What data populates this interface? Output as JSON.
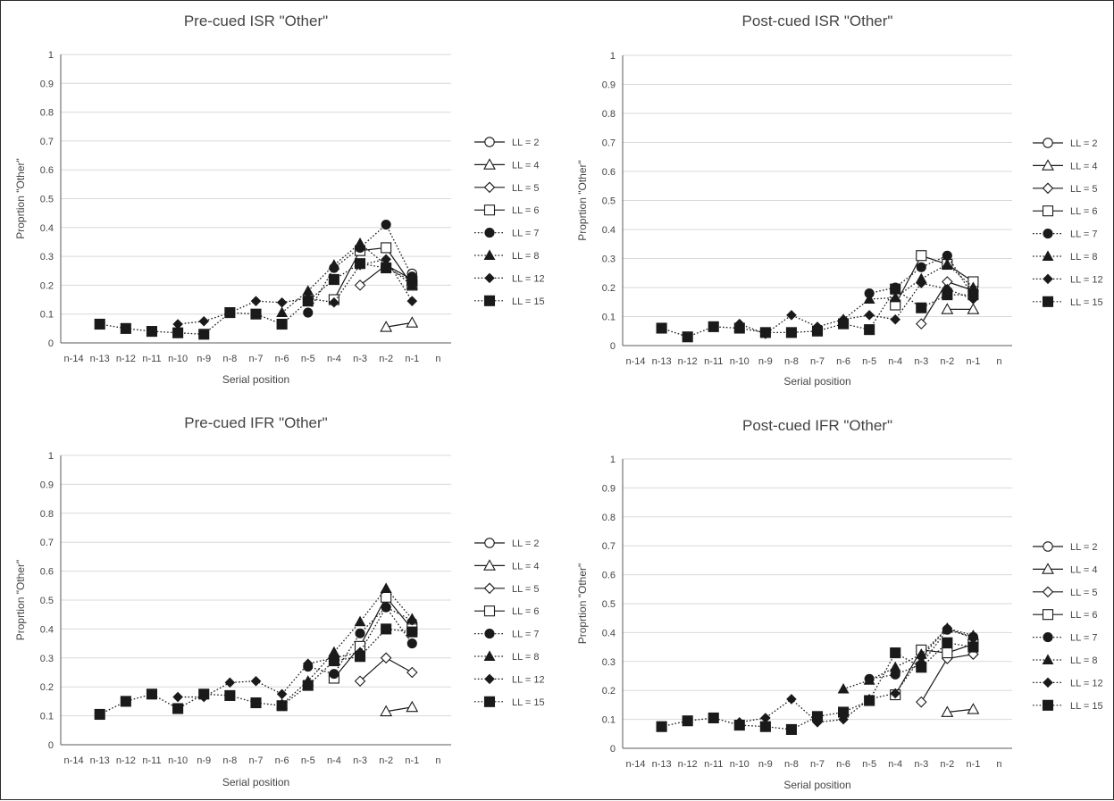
{
  "chart_data": [
    {
      "type": "line",
      "title": "Pre-cued ISR \"Other\"",
      "xlabel": "Serial position",
      "ylabel": "Proprtion \"Other\"",
      "categories": [
        "n-14",
        "n-13",
        "n-12",
        "n-11",
        "n-10",
        "n-9",
        "n-8",
        "n-7",
        "n-6",
        "n-5",
        "n-4",
        "n-3",
        "n-2",
        "n-1",
        "n"
      ],
      "ylim": [
        0,
        1
      ],
      "yticks": [
        "0",
        "0.1",
        "0.2",
        "0.3",
        "0.4",
        "0.5",
        "0.6",
        "0.7",
        "0.8",
        "0.9",
        "1"
      ],
      "grid": true,
      "legend": "right",
      "series": [
        {
          "name": "LL = 2",
          "marker": "circle-open",
          "line": "solid",
          "values": [
            null,
            null,
            null,
            null,
            null,
            null,
            null,
            null,
            null,
            null,
            null,
            null,
            null,
            0.24,
            null
          ]
        },
        {
          "name": "LL = 4",
          "marker": "triangle-open",
          "line": "solid",
          "values": [
            null,
            null,
            null,
            null,
            null,
            null,
            null,
            null,
            null,
            null,
            null,
            null,
            0.055,
            0.07,
            null
          ]
        },
        {
          "name": "LL = 5",
          "marker": "diamond-open",
          "line": "solid",
          "values": [
            null,
            null,
            null,
            null,
            null,
            null,
            null,
            null,
            null,
            null,
            null,
            0.2,
            0.27,
            0.22,
            null
          ]
        },
        {
          "name": "LL = 6",
          "marker": "square-open",
          "line": "solid",
          "values": [
            null,
            null,
            null,
            null,
            null,
            null,
            null,
            null,
            null,
            null,
            0.15,
            0.32,
            0.33,
            0.2,
            null
          ]
        },
        {
          "name": "LL = 7",
          "marker": "circle",
          "line": "dotted",
          "values": [
            null,
            null,
            null,
            null,
            null,
            null,
            null,
            null,
            null,
            0.105,
            0.26,
            0.33,
            0.41,
            0.23,
            null
          ]
        },
        {
          "name": "LL = 8",
          "marker": "triangle",
          "line": "dotted",
          "values": [
            null,
            null,
            null,
            null,
            null,
            null,
            null,
            null,
            0.105,
            0.18,
            0.27,
            0.345,
            0.27,
            0.2,
            null
          ]
        },
        {
          "name": "LL = 12",
          "marker": "diamond",
          "line": "dotted",
          "values": [
            null,
            null,
            null,
            null,
            0.065,
            0.075,
            0.105,
            0.145,
            0.14,
            0.155,
            0.14,
            0.27,
            0.29,
            0.145,
            null
          ]
        },
        {
          "name": "LL = 15",
          "marker": "square",
          "line": "dotted",
          "values": [
            null,
            0.065,
            0.05,
            0.04,
            0.035,
            0.03,
            0.105,
            0.1,
            0.065,
            0.145,
            0.22,
            0.275,
            0.26,
            0.215,
            null
          ]
        }
      ]
    },
    {
      "type": "line",
      "title": "Post-cued ISR \"Other\"",
      "xlabel": "Serial position",
      "ylabel": "Proprtion \"Other\"",
      "categories": [
        "n-14",
        "n-13",
        "n-12",
        "n-11",
        "n-10",
        "n-9",
        "n-8",
        "n-7",
        "n-6",
        "n-5",
        "n-4",
        "n-3",
        "n-2",
        "n-1",
        "n"
      ],
      "ylim": [
        0,
        1
      ],
      "yticks": [
        "0",
        "0.1",
        "0.2",
        "0.3",
        "0.4",
        "0.5",
        "0.6",
        "0.7",
        "0.8",
        "0.9",
        "1"
      ],
      "grid": true,
      "legend": "right",
      "series": [
        {
          "name": "LL = 2",
          "marker": "circle-open",
          "line": "solid",
          "values": [
            null,
            null,
            null,
            null,
            null,
            null,
            null,
            null,
            null,
            null,
            null,
            null,
            null,
            0.2,
            null
          ]
        },
        {
          "name": "LL = 4",
          "marker": "triangle-open",
          "line": "solid",
          "values": [
            null,
            null,
            null,
            null,
            null,
            null,
            null,
            null,
            null,
            null,
            null,
            null,
            0.125,
            0.125,
            null
          ]
        },
        {
          "name": "LL = 5",
          "marker": "diamond-open",
          "line": "solid",
          "values": [
            null,
            null,
            null,
            null,
            null,
            null,
            null,
            null,
            null,
            null,
            null,
            0.075,
            0.22,
            0.19,
            null
          ]
        },
        {
          "name": "LL = 6",
          "marker": "square-open",
          "line": "solid",
          "values": [
            null,
            null,
            null,
            null,
            null,
            null,
            null,
            null,
            null,
            null,
            0.14,
            0.31,
            0.28,
            0.22,
            null
          ]
        },
        {
          "name": "LL = 7",
          "marker": "circle",
          "line": "dotted",
          "values": [
            null,
            null,
            null,
            null,
            null,
            null,
            null,
            null,
            null,
            0.18,
            0.2,
            0.27,
            0.31,
            0.17,
            null
          ]
        },
        {
          "name": "LL = 8",
          "marker": "triangle",
          "line": "dotted",
          "values": [
            null,
            null,
            null,
            null,
            null,
            null,
            null,
            null,
            0.09,
            0.16,
            0.165,
            0.23,
            0.28,
            0.2,
            null
          ]
        },
        {
          "name": "LL = 12",
          "marker": "diamond",
          "line": "dotted",
          "values": [
            null,
            null,
            null,
            null,
            0.075,
            0.04,
            0.105,
            0.065,
            0.09,
            0.105,
            0.09,
            0.215,
            0.195,
            0.16,
            null
          ]
        },
        {
          "name": "LL = 15",
          "marker": "square",
          "line": "dotted",
          "values": [
            null,
            0.06,
            0.03,
            0.065,
            0.06,
            0.045,
            0.045,
            0.05,
            0.075,
            0.055,
            0.195,
            0.13,
            0.175,
            0.175,
            null
          ]
        }
      ]
    },
    {
      "type": "line",
      "title": "Pre-cued IFR \"Other\"",
      "xlabel": "Serial position",
      "ylabel": "Proprtion \"Other\"",
      "categories": [
        "n-14",
        "n-13",
        "n-12",
        "n-11",
        "n-10",
        "n-9",
        "n-8",
        "n-7",
        "n-6",
        "n-5",
        "n-4",
        "n-3",
        "n-2",
        "n-1",
        "n"
      ],
      "ylim": [
        0,
        1
      ],
      "yticks": [
        "0",
        "0.1",
        "0.2",
        "0.3",
        "0.4",
        "0.5",
        "0.6",
        "0.7",
        "0.8",
        "0.9",
        "1"
      ],
      "grid": true,
      "legend": "right",
      "series": [
        {
          "name": "LL = 2",
          "marker": "circle-open",
          "line": "solid",
          "values": [
            null,
            null,
            null,
            null,
            null,
            null,
            null,
            null,
            null,
            null,
            null,
            null,
            null,
            0.42,
            null
          ]
        },
        {
          "name": "LL = 4",
          "marker": "triangle-open",
          "line": "solid",
          "values": [
            null,
            null,
            null,
            null,
            null,
            null,
            null,
            null,
            null,
            null,
            null,
            null,
            0.115,
            0.13,
            null
          ]
        },
        {
          "name": "LL = 5",
          "marker": "diamond-open",
          "line": "solid",
          "values": [
            null,
            null,
            null,
            null,
            null,
            null,
            null,
            null,
            null,
            null,
            null,
            0.22,
            0.3,
            0.25,
            null
          ]
        },
        {
          "name": "LL = 6",
          "marker": "square-open",
          "line": "solid",
          "values": [
            null,
            null,
            null,
            null,
            null,
            null,
            null,
            null,
            null,
            null,
            0.23,
            0.34,
            0.51,
            0.4,
            null
          ]
        },
        {
          "name": "LL = 7",
          "marker": "circle",
          "line": "dotted",
          "values": [
            null,
            null,
            null,
            null,
            null,
            null,
            null,
            null,
            null,
            0.27,
            0.245,
            0.385,
            0.475,
            0.35,
            null
          ]
        },
        {
          "name": "LL = 8",
          "marker": "triangle",
          "line": "dotted",
          "values": [
            null,
            null,
            null,
            null,
            null,
            null,
            null,
            null,
            0.14,
            0.22,
            0.32,
            0.425,
            0.54,
            0.435,
            null
          ]
        },
        {
          "name": "LL = 12",
          "marker": "diamond",
          "line": "dotted",
          "values": [
            null,
            null,
            null,
            null,
            0.165,
            0.165,
            0.215,
            0.22,
            0.175,
            0.28,
            0.3,
            0.32,
            0.475,
            0.43,
            null
          ]
        },
        {
          "name": "LL = 15",
          "marker": "square",
          "line": "dotted",
          "values": [
            null,
            0.105,
            0.15,
            0.175,
            0.125,
            0.175,
            0.17,
            0.145,
            0.135,
            0.205,
            0.29,
            0.305,
            0.4,
            0.39,
            null
          ]
        }
      ]
    },
    {
      "type": "line",
      "title": "Post-cued IFR \"Other\"",
      "xlabel": "Serial position",
      "ylabel": "Proprtion \"Other\"",
      "categories": [
        "n-14",
        "n-13",
        "n-12",
        "n-11",
        "n-10",
        "n-9",
        "n-8",
        "n-7",
        "n-6",
        "n-5",
        "n-4",
        "n-3",
        "n-2",
        "n-1",
        "n"
      ],
      "ylim": [
        0,
        1
      ],
      "yticks": [
        "0",
        "0.1",
        "0.2",
        "0.3",
        "0.4",
        "0.5",
        "0.6",
        "0.7",
        "0.8",
        "0.9",
        "1"
      ],
      "grid": true,
      "legend": "right",
      "series": [
        {
          "name": "LL = 2",
          "marker": "circle-open",
          "line": "solid",
          "values": [
            null,
            null,
            null,
            null,
            null,
            null,
            null,
            null,
            null,
            null,
            null,
            null,
            null,
            0.38,
            null
          ]
        },
        {
          "name": "LL = 4",
          "marker": "triangle-open",
          "line": "solid",
          "values": [
            null,
            null,
            null,
            null,
            null,
            null,
            null,
            null,
            null,
            null,
            null,
            null,
            0.125,
            0.135,
            null
          ]
        },
        {
          "name": "LL = 5",
          "marker": "diamond-open",
          "line": "solid",
          "values": [
            null,
            null,
            null,
            null,
            null,
            null,
            null,
            null,
            null,
            null,
            null,
            0.16,
            0.31,
            0.325,
            null
          ]
        },
        {
          "name": "LL = 6",
          "marker": "square-open",
          "line": "solid",
          "values": [
            null,
            null,
            null,
            null,
            null,
            null,
            null,
            null,
            null,
            null,
            0.185,
            0.34,
            0.33,
            0.36,
            null
          ]
        },
        {
          "name": "LL = 7",
          "marker": "circle",
          "line": "dotted",
          "values": [
            null,
            null,
            null,
            null,
            null,
            null,
            null,
            null,
            null,
            0.24,
            0.255,
            0.29,
            0.41,
            0.385,
            null
          ]
        },
        {
          "name": "LL = 8",
          "marker": "triangle",
          "line": "dotted",
          "values": [
            null,
            null,
            null,
            null,
            null,
            null,
            null,
            null,
            0.205,
            0.235,
            0.28,
            0.325,
            0.415,
            0.39,
            null
          ]
        },
        {
          "name": "LL = 12",
          "marker": "diamond",
          "line": "dotted",
          "values": [
            null,
            null,
            null,
            null,
            0.09,
            0.105,
            0.17,
            0.09,
            0.1,
            0.17,
            0.19,
            0.315,
            0.415,
            0.38,
            null
          ]
        },
        {
          "name": "LL = 15",
          "marker": "square",
          "line": "dotted",
          "values": [
            null,
            0.075,
            0.095,
            0.105,
            0.08,
            0.075,
            0.065,
            0.11,
            0.125,
            0.165,
            0.33,
            0.28,
            0.365,
            0.35,
            null
          ]
        }
      ]
    }
  ]
}
